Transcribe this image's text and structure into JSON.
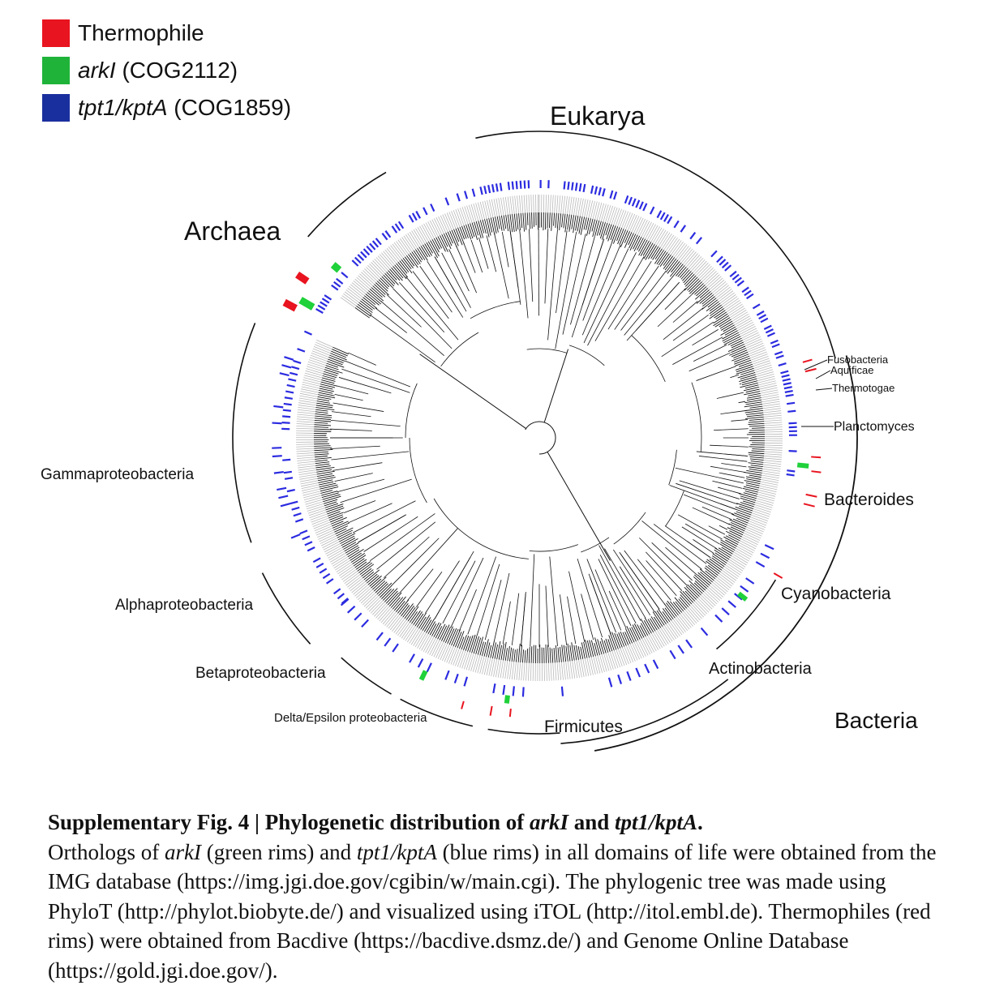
{
  "legend": {
    "items": [
      {
        "name": "thermophile",
        "label": "Thermophile",
        "italic": "",
        "color": "#e8141f"
      },
      {
        "name": "arki",
        "label": " (COG2112)",
        "italic": "arkI",
        "color": "#1fb33a"
      },
      {
        "name": "tpt1",
        "label": " (COG1859)",
        "italic": "tpt1/kptA",
        "color": "#1a2f9e"
      }
    ]
  },
  "clades": {
    "eukarya": "Eukarya",
    "archaea": "Archaea",
    "bacteria": "Bacteria",
    "fusobacteria": "Fusobacteria",
    "aquificae": "Aquificae",
    "thermotogae": "Thermotogae",
    "planctomyces": "Planctomyces",
    "bacteroides": "Bacteroides",
    "cyanobacteria": "Cyanobacteria",
    "actinobacteria": "Actinobacteria",
    "firmicutes": "Firmicutes",
    "delta_epsilon": "Delta/Epsilon proteobacteria",
    "betaproteobacteria": "Betaproteobacteria",
    "alphaproteobacteria": "Alphaproteobacteria",
    "gammaproteobacteria": "Gammaproteobacteria"
  },
  "colors": {
    "blue_rim": "#2b2be0",
    "green_rim": "#1fd13a",
    "red_rim": "#e8141f",
    "leaf_ring": "#b8b8b8",
    "branch": "#111111"
  },
  "caption": {
    "title_a": "Supplementary Fig. 4 | Phylogenetic distribution of ",
    "title_arki": "arkI",
    "title_and": " and ",
    "title_tpt1": "tpt1/kptA",
    "title_end": ".",
    "p1": "Orthologs of ",
    "arki": "arkI",
    "p2": " (green rims) and ",
    "tpt1": "tpt1/kptA",
    "p3": " (blue rims) in all domains of life were obtained from the IMG database (https://img.jgi.doe.gov/cgibin/w/main.cgi). The phylogenic tree was made using PhyloT (http://phylot.biobyte.de/) and visualized using iTOL (http://itol.embl.de). Thermophiles (red rims) were obtained from Bacdive (https://bacdive.dsmz.de/) and Genome Online Database (https://gold.jgi.doe.gov/)."
  }
}
